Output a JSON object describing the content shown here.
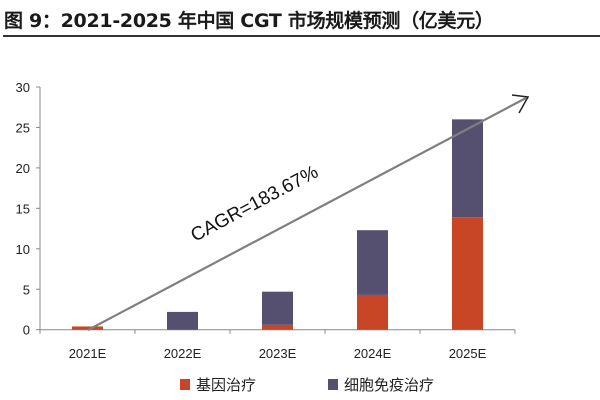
{
  "chart_data": {
    "type": "bar",
    "stacked": true,
    "title": "图 9：2021-2025 年中国 CGT 市场规模预测（亿美元）",
    "categories": [
      "2021E",
      "2022E",
      "2023E",
      "2024E",
      "2025E"
    ],
    "series": [
      {
        "name": "基因治疗",
        "color": "#C84526",
        "values": [
          0.4,
          0,
          0.6,
          4.3,
          13.9
        ]
      },
      {
        "name": "细胞免疫治疗",
        "color": "#555070",
        "values": [
          0,
          2.2,
          4.1,
          8.0,
          12.1
        ]
      }
    ],
    "ylim": [
      0,
      30
    ],
    "yticks": [
      0,
      5,
      10,
      15,
      20,
      25,
      30
    ],
    "xlabel": "",
    "ylabel": "",
    "grid": false,
    "legend": "bottom",
    "annotation": "CAGR=183.67%"
  }
}
